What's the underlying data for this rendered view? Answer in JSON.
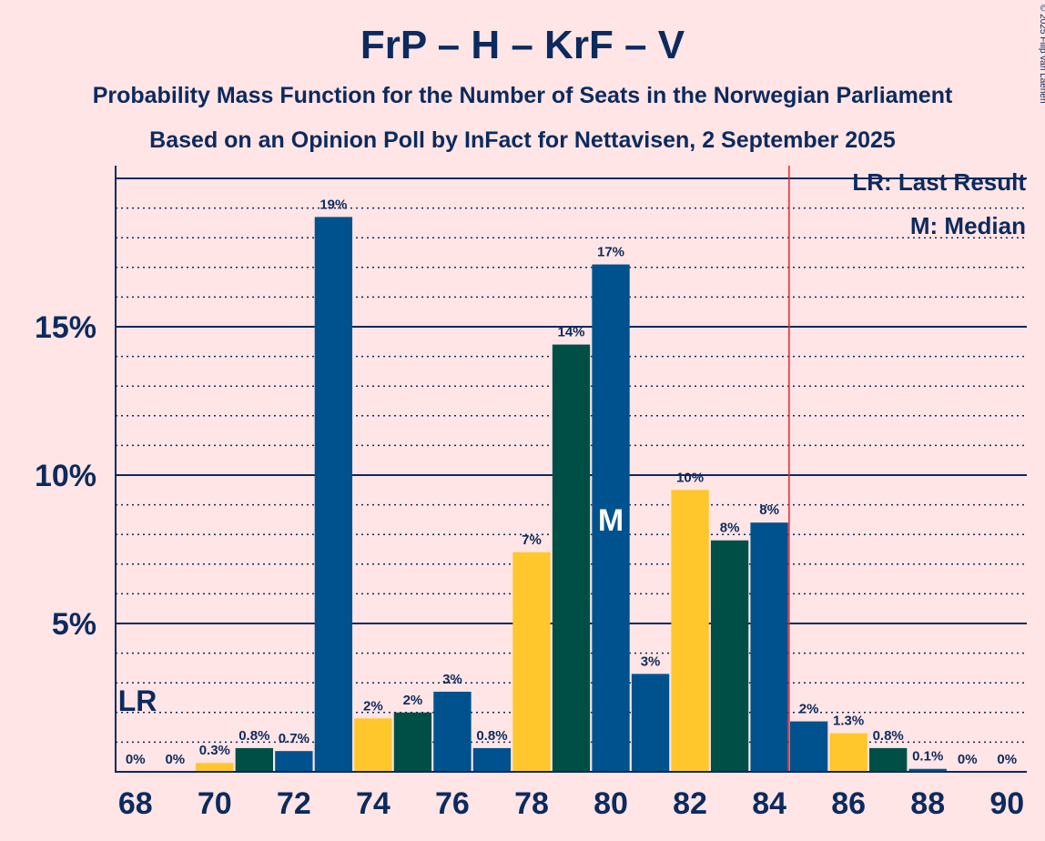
{
  "chart_data": {
    "type": "bar",
    "title": "FrP – H – KrF – V",
    "subtitle1": "Probability Mass Function for the Number of Seats in the Norwegian Parliament",
    "subtitle2": "Based on an Opinion Poll by InFact for Nettavisen, 2 September 2025",
    "copyright": "© 2025 Filip van Laenen",
    "xlabel": "",
    "ylabel": "",
    "x": [
      68,
      69,
      70,
      71,
      72,
      73,
      74,
      75,
      76,
      77,
      78,
      79,
      80,
      81,
      82,
      83,
      84,
      85,
      86,
      87,
      88,
      89,
      90
    ],
    "values": [
      0,
      0,
      0.3,
      0.8,
      0.7,
      18.7,
      1.8,
      2.0,
      2.7,
      0.8,
      7.4,
      14.4,
      17.1,
      3.3,
      9.5,
      7.8,
      8.4,
      1.7,
      1.3,
      0.8,
      0.1,
      0,
      0
    ],
    "labels": [
      "0%",
      "0%",
      "0.3%",
      "0.8%",
      "0.7%",
      "19%",
      "2%",
      "2%",
      "3%",
      "0.8%",
      "7%",
      "14%",
      "17%",
      "3%",
      "10%",
      "8%",
      "8%",
      "2%",
      "1.3%",
      "0.8%",
      "0.1%",
      "0%",
      "0%"
    ],
    "show_label": [
      true,
      true,
      true,
      true,
      true,
      true,
      true,
      true,
      true,
      true,
      true,
      true,
      true,
      true,
      true,
      true,
      true,
      true,
      true,
      true,
      true,
      true,
      true
    ],
    "colors": [
      "#00528F",
      "#00528F",
      "#FFC72C",
      "#004F47",
      "#00528F",
      "#00528F",
      "#FFC72C",
      "#004F47",
      "#00528F",
      "#00528F",
      "#FFC72C",
      "#004F47",
      "#00528F",
      "#00528F",
      "#FFC72C",
      "#004F47",
      "#00528F",
      "#00528F",
      "#FFC72C",
      "#004F47",
      "#00528F",
      "#00528F",
      "#FFC72C"
    ],
    "x_ticks": [
      "68",
      "70",
      "72",
      "74",
      "76",
      "78",
      "80",
      "82",
      "84",
      "86",
      "88",
      "90"
    ],
    "x_tick_values": [
      68,
      70,
      72,
      74,
      76,
      78,
      80,
      82,
      84,
      86,
      88,
      90
    ],
    "y_ticks": [
      "5%",
      "10%",
      "15%"
    ],
    "y_tick_values": [
      5,
      10,
      15
    ],
    "ylim": [
      0,
      20.5
    ],
    "xlim": [
      67.5,
      90.5
    ],
    "grid": "dotted minor every 1%, solid major every 5%",
    "majority_line_x": 84.5,
    "last_result_x": 68,
    "last_result_label": "LR",
    "median_x": 80,
    "median_label": "M",
    "legend": [
      "LR: Last Result",
      "M: Median"
    ],
    "legend_position": "top-right",
    "accent_colors": {
      "axis": "#0C2A5E",
      "majority_line": "#E8242C",
      "background": "#FFE5E5"
    }
  }
}
